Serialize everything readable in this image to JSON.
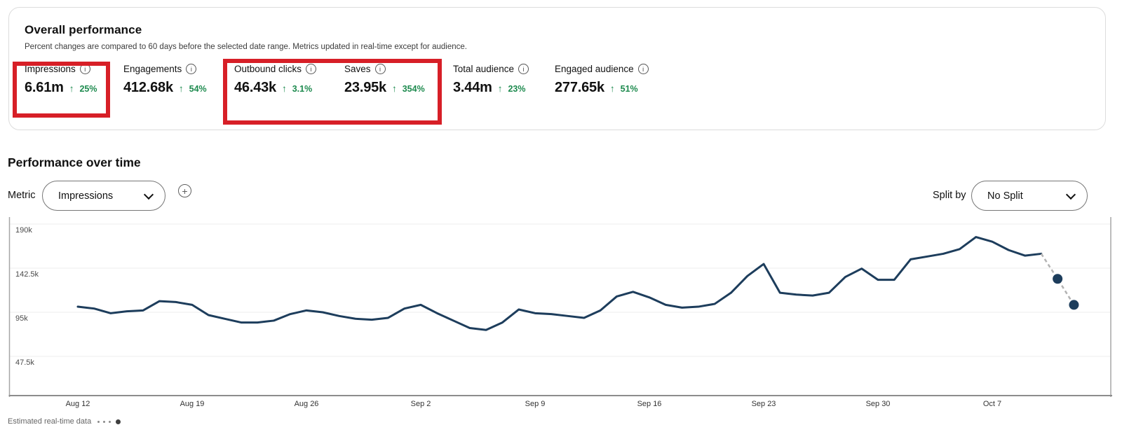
{
  "overall": {
    "title": "Overall performance",
    "subtitle": "Percent changes are compared to 60 days before the selected date range. Metrics updated in real-time except for audience.",
    "metrics": [
      {
        "label": "Impressions",
        "value": "6.61m",
        "arrow": "↑",
        "change": "25%"
      },
      {
        "label": "Engagements",
        "value": "412.68k",
        "arrow": "↑",
        "change": "54%"
      },
      {
        "label": "Outbound clicks",
        "value": "46.43k",
        "arrow": "↑",
        "change": "3.1%"
      },
      {
        "label": "Saves",
        "value": "23.95k",
        "arrow": "↑",
        "change": "354%"
      },
      {
        "label": "Total audience",
        "value": "3.44m",
        "arrow": "↑",
        "change": "23%"
      },
      {
        "label": "Engaged audience",
        "value": "277.65k",
        "arrow": "↑",
        "change": "51%"
      }
    ]
  },
  "controls": {
    "section_title": "Performance over time",
    "metric_label": "Metric",
    "metric_selected": "Impressions",
    "split_label": "Split by",
    "split_selected": "No Split"
  },
  "footer": {
    "legend_label": "Estimated real-time data"
  },
  "icons": {
    "info": "i",
    "plus": "+"
  },
  "colors": {
    "line": "#1d3d5c",
    "estimated_dash": "#b3b3b3",
    "positive_green": "#1d8a4e",
    "annotation_red": "#d71f27",
    "gridline": "#ececec",
    "axis_border": "#a6a6a6",
    "bottom_axis": "#8c8c8c"
  },
  "chart_data": {
    "type": "line",
    "title": "Performance over time",
    "metric": "Impressions",
    "grid": "horizontal",
    "legend_position": "none",
    "ylim": [
      0,
      197500
    ],
    "y_ticks": [
      "190k",
      "142.5k",
      "95k",
      "47.5k"
    ],
    "y_tick_values": [
      190000,
      142500,
      95000,
      47500
    ],
    "x_ticks": [
      "Aug 12",
      "Aug 19",
      "Aug 26",
      "Sep 2",
      "Sep 9",
      "Sep 16",
      "Sep 23",
      "Sep 30",
      "Oct 7"
    ],
    "series": [
      {
        "name": "Impressions",
        "x": [
          "Aug 12",
          "Aug 13",
          "Aug 14",
          "Aug 15",
          "Aug 16",
          "Aug 17",
          "Aug 18",
          "Aug 19",
          "Aug 20",
          "Aug 21",
          "Aug 22",
          "Aug 23",
          "Aug 24",
          "Aug 25",
          "Aug 26",
          "Aug 27",
          "Aug 28",
          "Aug 29",
          "Aug 30",
          "Aug 31",
          "Sep 1",
          "Sep 2",
          "Sep 3",
          "Sep 4",
          "Sep 5",
          "Sep 6",
          "Sep 7",
          "Sep 8",
          "Sep 9",
          "Sep 10",
          "Sep 11",
          "Sep 12",
          "Sep 13",
          "Sep 14",
          "Sep 15",
          "Sep 16",
          "Sep 17",
          "Sep 18",
          "Sep 19",
          "Sep 20",
          "Sep 21",
          "Sep 22",
          "Sep 23",
          "Sep 24",
          "Sep 25",
          "Sep 26",
          "Sep 27",
          "Sep 28",
          "Sep 29",
          "Sep 30",
          "Oct 1",
          "Oct 2",
          "Oct 3",
          "Oct 4",
          "Oct 5",
          "Oct 6",
          "Oct 7",
          "Oct 8",
          "Oct 9",
          "Oct 10"
        ],
        "values": [
          101000,
          99000,
          94000,
          96000,
          97000,
          107000,
          106000,
          103000,
          92000,
          88000,
          84000,
          84000,
          86000,
          93000,
          97000,
          95000,
          91000,
          88000,
          87000,
          89000,
          99000,
          103000,
          94000,
          86000,
          78000,
          76000,
          84000,
          98000,
          94000,
          93000,
          91000,
          89000,
          97000,
          112000,
          117000,
          111000,
          103000,
          100000,
          101000,
          104000,
          116000,
          134000,
          147000,
          116000,
          114000,
          113000,
          116000,
          133000,
          142000,
          130000,
          130000,
          152000,
          155000,
          158000,
          163000,
          176000,
          171000,
          162000,
          156000,
          158000
        ]
      }
    ],
    "estimated": {
      "note": "Estimated real-time data",
      "x": [
        "Oct 11",
        "Oct 12"
      ],
      "values": [
        131000,
        103000
      ]
    }
  }
}
